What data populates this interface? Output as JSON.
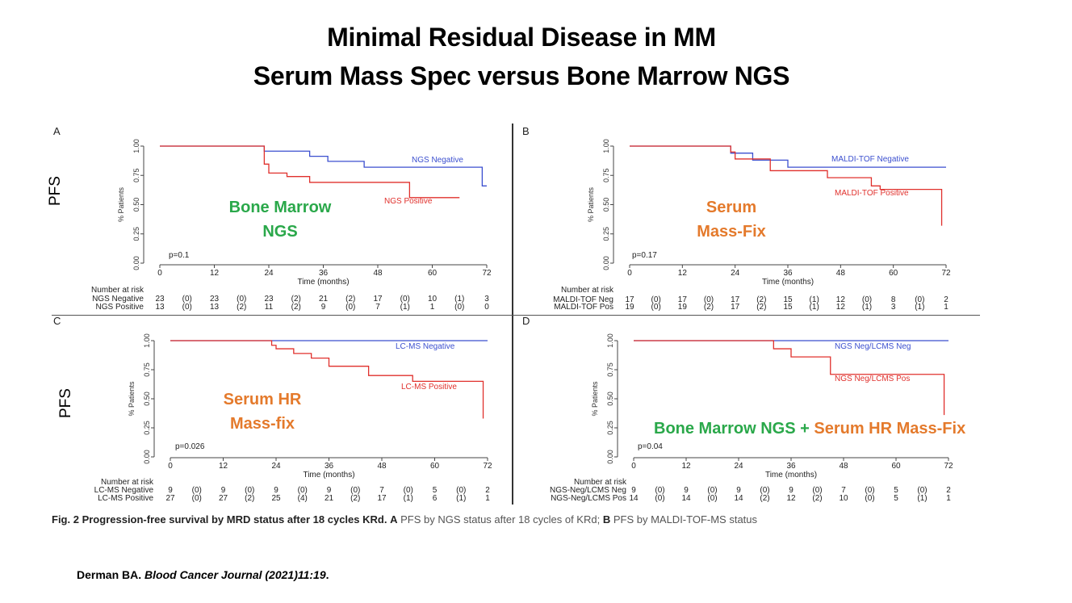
{
  "title_line1": "Minimal Residual Disease in MM",
  "title_line2": "Serum Mass Spec versus Bone Marrow NGS",
  "pfs_label": "PFS",
  "overlays": {
    "a": "Bone Marrow NGS",
    "b": "Serum Mass-Fix",
    "c": "Serum HR Mass-fix",
    "d_part1": "Bone Marrow NGS",
    "d_plus": " + ",
    "d_part2": "Serum HR Mass-Fix"
  },
  "caption": {
    "fig": "Fig. 2",
    "bold_text": "Progression-free survival by MRD status after 18 cycles KRd.",
    "a_letter": "A",
    "a_text": "PFS by NGS status after 18 cycles of KRd;",
    "b_letter": "B",
    "b_text": "PFS by MALDI-TOF-MS status"
  },
  "citation": {
    "author": "Derman BA.",
    "journal": "Blood Cancer Journal (2021)11:19",
    "end": "."
  },
  "colors": {
    "blue": "#3b4fcf",
    "red": "#e0302c",
    "green": "#2aa84a",
    "orange": "#e47a2c"
  },
  "chart_data": [
    {
      "panel": "A",
      "type": "line",
      "step": true,
      "xlabel": "Time (months)",
      "ylabel": "% Patients",
      "xticks": [
        0,
        12,
        24,
        36,
        48,
        60,
        72
      ],
      "yticks": [
        "0.00",
        "0.25",
        "0.50",
        "0.75",
        "1.00"
      ],
      "xlim": [
        0,
        72
      ],
      "ylim": [
        0,
        1
      ],
      "pvalue": "p=0.1",
      "series": [
        {
          "name": "NGS Negative",
          "color": "blue",
          "x": [
            0,
            23,
            33,
            37,
            45,
            71,
            72
          ],
          "y": [
            1.0,
            0.957,
            0.913,
            0.87,
            0.82,
            0.66,
            0.66
          ]
        },
        {
          "name": "NGS Positive",
          "color": "red",
          "x": [
            0,
            23,
            24,
            28,
            33,
            55,
            66
          ],
          "y": [
            1.0,
            0.846,
            0.77,
            0.74,
            0.69,
            0.56,
            0.56
          ]
        }
      ],
      "risk": {
        "header": "Number at risk",
        "rows": [
          {
            "label": "NGS Negative",
            "values": [
              "23",
              "(0)",
              "23",
              "(0)",
              "23",
              "(2)",
              "21",
              "(2)",
              "17",
              "(0)",
              "10",
              "(1)",
              "3"
            ]
          },
          {
            "label": "NGS Positive",
            "values": [
              "13",
              "(0)",
              "13",
              "(2)",
              "11",
              "(2)",
              "9",
              "(0)",
              "7",
              "(1)",
              "1",
              "(0)",
              "0"
            ]
          }
        ]
      }
    },
    {
      "panel": "B",
      "type": "line",
      "step": true,
      "xlabel": "Time (months)",
      "ylabel": "% Patients",
      "xticks": [
        0,
        12,
        24,
        36,
        48,
        60,
        72
      ],
      "yticks": [
        "0.00",
        "0.25",
        "0.50",
        "0.75",
        "1.00"
      ],
      "xlim": [
        0,
        72
      ],
      "ylim": [
        0,
        1
      ],
      "pvalue": "p=0.17",
      "series": [
        {
          "name": "MALDI-TOF Negative",
          "color": "blue",
          "x": [
            0,
            23,
            28,
            36,
            45,
            72
          ],
          "y": [
            1.0,
            0.94,
            0.88,
            0.82,
            0.82,
            0.82
          ]
        },
        {
          "name": "MALDI-TOF Positive",
          "color": "red",
          "x": [
            0,
            23,
            24,
            32,
            45,
            55,
            57,
            71
          ],
          "y": [
            1.0,
            0.95,
            0.89,
            0.79,
            0.73,
            0.66,
            0.63,
            0.32
          ]
        }
      ],
      "risk": {
        "header": "Number at risk",
        "rows": [
          {
            "label": "MALDI-TOF Neg",
            "values": [
              "17",
              "(0)",
              "17",
              "(0)",
              "17",
              "(2)",
              "15",
              "(1)",
              "12",
              "(0)",
              "8",
              "(0)",
              "2"
            ]
          },
          {
            "label": "MALDI-TOF Pos",
            "values": [
              "19",
              "(0)",
              "19",
              "(2)",
              "17",
              "(2)",
              "15",
              "(1)",
              "12",
              "(1)",
              "3",
              "(1)",
              "1"
            ]
          }
        ]
      }
    },
    {
      "panel": "C",
      "type": "line",
      "step": true,
      "xlabel": "Time (months)",
      "ylabel": "% Patients",
      "xticks": [
        0,
        12,
        24,
        36,
        48,
        60,
        72
      ],
      "yticks": [
        "0.00",
        "0.25",
        "0.50",
        "0.75",
        "1.00"
      ],
      "xlim": [
        0,
        72
      ],
      "ylim": [
        0,
        1
      ],
      "pvalue": "p=0.026",
      "series": [
        {
          "name": "LC-MS Negative",
          "color": "blue",
          "x": [
            0,
            72
          ],
          "y": [
            1.0,
            1.0
          ]
        },
        {
          "name": "LC-MS Positive",
          "color": "red",
          "x": [
            0,
            23,
            24,
            28,
            32,
            36,
            45,
            55,
            71
          ],
          "y": [
            1.0,
            0.96,
            0.93,
            0.89,
            0.85,
            0.78,
            0.7,
            0.65,
            0.33
          ]
        }
      ],
      "risk": {
        "header": "Number at risk",
        "rows": [
          {
            "label": "LC-MS Negative",
            "values": [
              "9",
              "(0)",
              "9",
              "(0)",
              "9",
              "(0)",
              "9",
              "(0)",
              "7",
              "(0)",
              "5",
              "(0)",
              "2"
            ]
          },
          {
            "label": "LC-MS Positive",
            "values": [
              "27",
              "(0)",
              "27",
              "(2)",
              "25",
              "(4)",
              "21",
              "(2)",
              "17",
              "(1)",
              "6",
              "(1)",
              "1"
            ]
          }
        ]
      }
    },
    {
      "panel": "D",
      "type": "line",
      "step": true,
      "xlabel": "Time (months)",
      "ylabel": "% Patients",
      "xticks": [
        0,
        12,
        24,
        36,
        48,
        60,
        72
      ],
      "yticks": [
        "0.00",
        "0.25",
        "0.50",
        "0.75",
        "1.00"
      ],
      "xlim": [
        0,
        72
      ],
      "ylim": [
        0,
        1
      ],
      "pvalue": "p=0.04",
      "series": [
        {
          "name": "NGS Neg/LCMS Neg",
          "color": "blue",
          "x": [
            0,
            72
          ],
          "y": [
            1.0,
            1.0
          ]
        },
        {
          "name": "NGS Neg/LCMS Pos",
          "color": "red",
          "x": [
            0,
            32,
            36,
            45,
            71
          ],
          "y": [
            1.0,
            0.93,
            0.86,
            0.71,
            0.36
          ]
        }
      ],
      "risk": {
        "header": "Number at risk",
        "rows": [
          {
            "label": "NGS-Neg/LCMS Neg",
            "values": [
              "9",
              "(0)",
              "9",
              "(0)",
              "9",
              "(0)",
              "9",
              "(0)",
              "7",
              "(0)",
              "5",
              "(0)",
              "2"
            ]
          },
          {
            "label": "NGS-Neg/LCMS Pos",
            "values": [
              "14",
              "(0)",
              "14",
              "(0)",
              "14",
              "(2)",
              "12",
              "(2)",
              "10",
              "(0)",
              "5",
              "(1)",
              "1"
            ]
          }
        ]
      }
    }
  ]
}
